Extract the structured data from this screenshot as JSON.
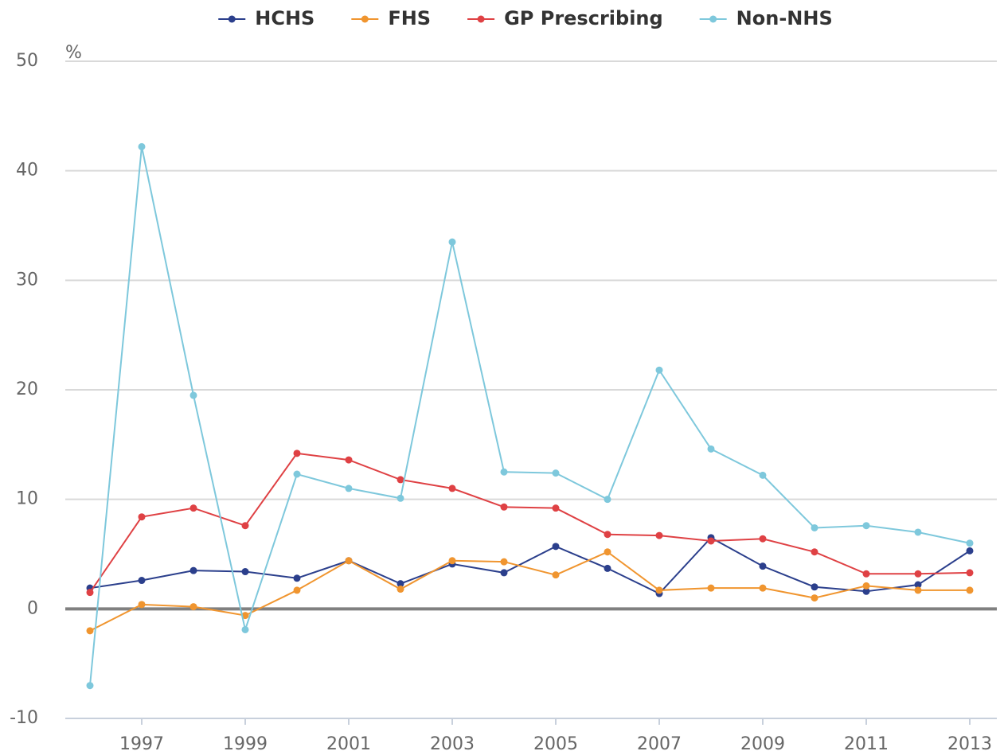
{
  "chart_data": {
    "type": "line",
    "y_label": "%",
    "categories": [
      null,
      "1997",
      null,
      "1999",
      null,
      "2001",
      null,
      "2003",
      null,
      "2005",
      null,
      "2007",
      null,
      "2009",
      null,
      "2011",
      null,
      "2013"
    ],
    "series": [
      {
        "name": "HCHS",
        "color": "#2b3f8c",
        "values": [
          1.9,
          2.6,
          3.5,
          3.4,
          2.8,
          4.4,
          2.3,
          4.1,
          3.3,
          5.7,
          3.7,
          1.4,
          6.5,
          3.9,
          2.0,
          1.6,
          2.2,
          5.3
        ]
      },
      {
        "name": "FHS",
        "color": "#f0952f",
        "values": [
          -2.0,
          0.4,
          0.2,
          -0.6,
          1.7,
          4.4,
          1.8,
          4.4,
          4.3,
          3.1,
          5.2,
          1.7,
          1.9,
          1.9,
          1.0,
          2.1,
          1.7,
          1.7
        ]
      },
      {
        "name": "GP Prescribing",
        "color": "#df4144",
        "values": [
          1.5,
          8.4,
          9.2,
          7.6,
          14.2,
          13.6,
          11.8,
          11.0,
          9.3,
          9.2,
          6.8,
          6.7,
          6.2,
          6.4,
          5.2,
          3.2,
          3.2,
          3.3
        ]
      },
      {
        "name": "Non-NHS",
        "color": "#7ec8dc",
        "values": [
          -7.0,
          42.2,
          19.5,
          -1.9,
          12.3,
          11.0,
          10.1,
          33.5,
          12.5,
          12.4,
          10.0,
          21.8,
          14.6,
          12.2,
          7.4,
          7.6,
          7.0,
          6.0
        ]
      }
    ],
    "ylim": [
      -10,
      50
    ],
    "yticks": [
      -10,
      0,
      10,
      20,
      30,
      40,
      50
    ],
    "grid": true,
    "legend": "top"
  }
}
